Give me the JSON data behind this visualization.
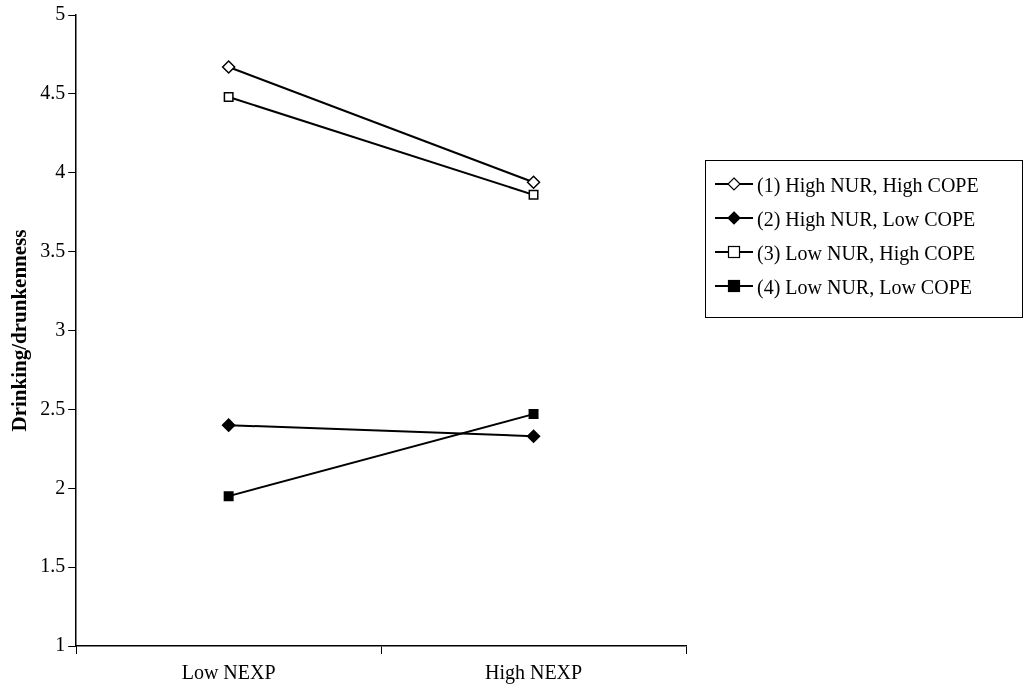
{
  "chart_data": {
    "type": "line",
    "ylabel": "Drinking/drunkenness",
    "categories": [
      "Low NEXP",
      "High NEXP"
    ],
    "series": [
      {
        "name": "(1) High NUR, High COPE",
        "color": "#000000",
        "marker": "diamond",
        "values": [
          4.67,
          3.94
        ]
      },
      {
        "name": "(2) High NUR, Low COPE",
        "color": "#000000",
        "marker": "diamond",
        "values": [
          2.4,
          2.33
        ]
      },
      {
        "name": "(3) Low NUR, High COPE",
        "color": "#000000",
        "marker": "square",
        "values": [
          4.48,
          3.86
        ]
      },
      {
        "name": "(4) Low NUR, Low COPE",
        "color": "#000000",
        "marker": "square",
        "values": [
          1.95,
          2.47
        ]
      }
    ],
    "ylim": [
      1,
      5
    ],
    "yticks": [
      1,
      1.5,
      2,
      2.5,
      3,
      3.5,
      4,
      4.5,
      5
    ],
    "grid": false,
    "legend": "right"
  }
}
